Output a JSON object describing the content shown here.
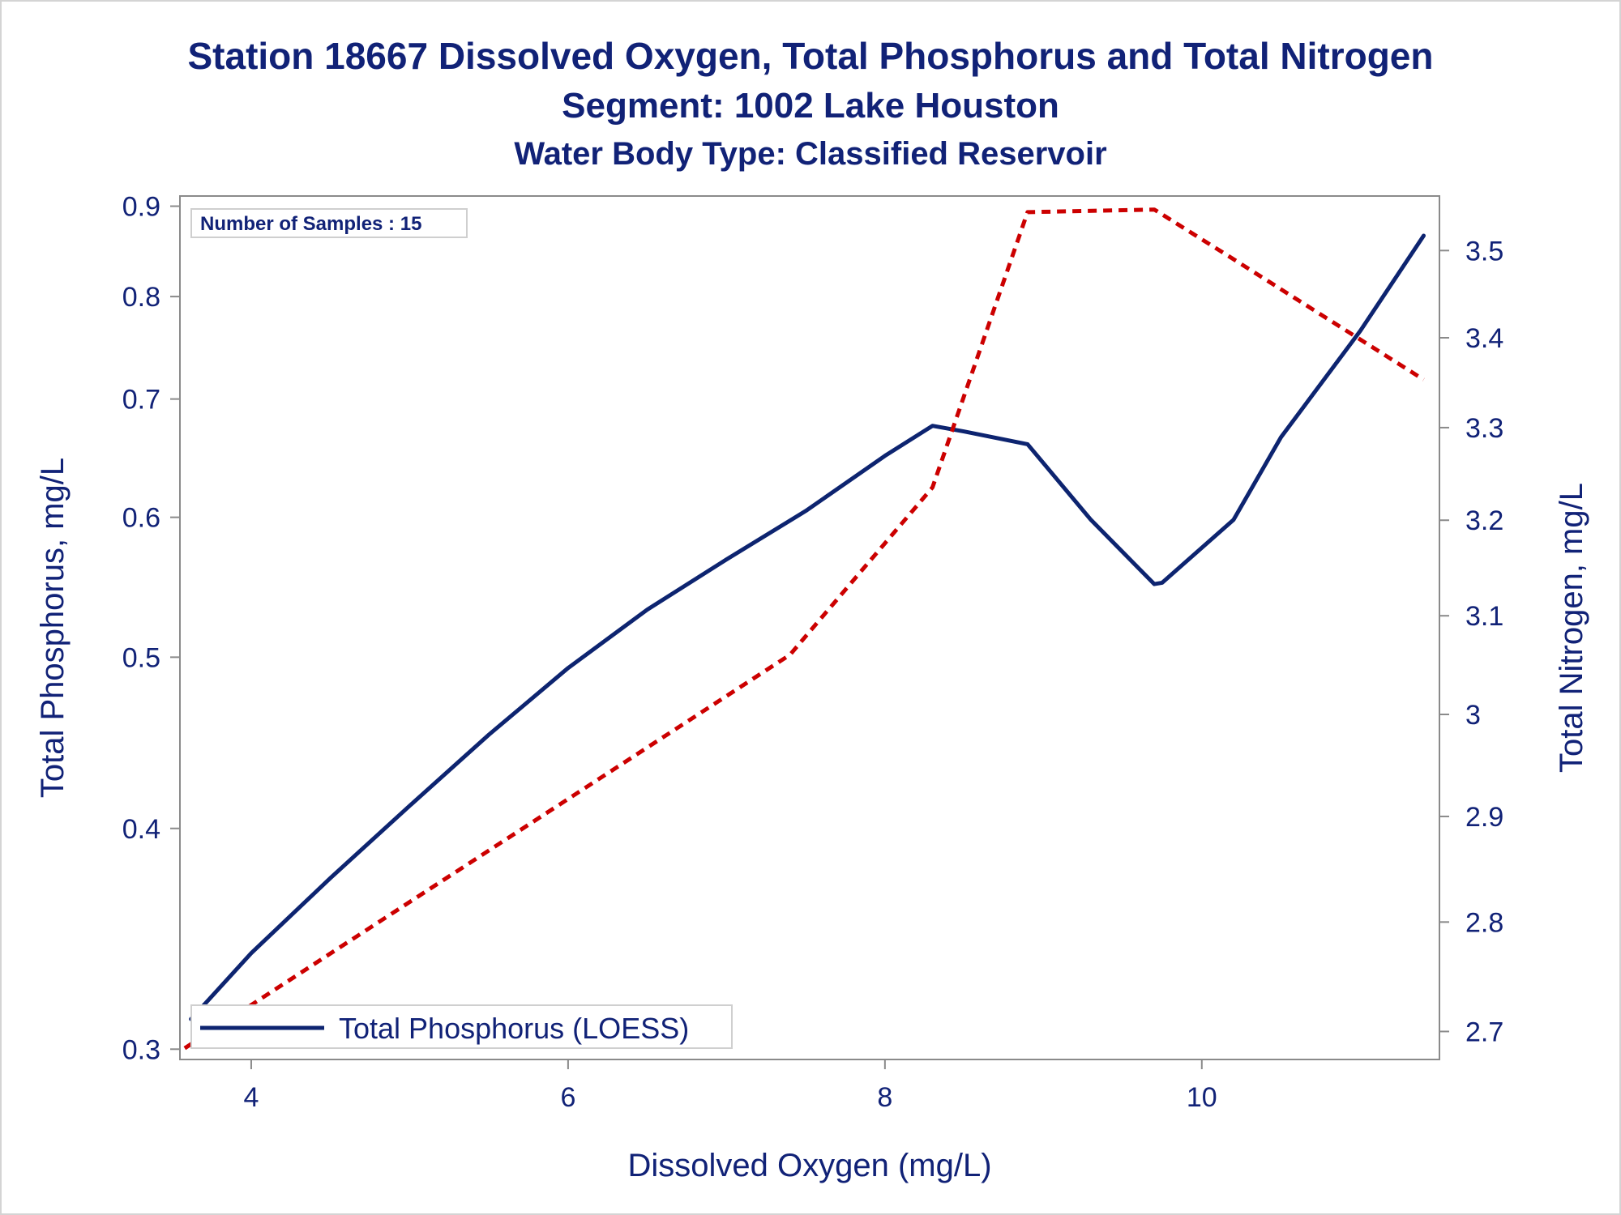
{
  "titles": {
    "line1": "Station 18667  Dissolved Oxygen, Total Phosphorus and Total Nitrogen",
    "line2": "Segment: 1002  Lake Houston",
    "line3": "Water Body Type: Classified Reservoir"
  },
  "chart_data": {
    "type": "line",
    "xlabel": "Dissolved Oxygen (mg/L)",
    "ylabel_left": "Total Phosphorus, mg/L",
    "ylabel_right": "Total Nitrogen, mg/L",
    "x_ticks": [
      "4",
      "6",
      "8",
      "10"
    ],
    "y_left_ticks": [
      "0.3",
      "0.4",
      "0.5",
      "0.6",
      "0.7",
      "0.8",
      "0.9"
    ],
    "y_right_ticks": [
      "2.7",
      "2.8",
      "2.9",
      "3",
      "3.1",
      "3.2",
      "3.3",
      "3.4",
      "3.5"
    ],
    "xlim": [
      3.55,
      11.5
    ],
    "ylim_left": [
      0.296,
      0.912
    ],
    "ylim_right": [
      2.675,
      3.564
    ],
    "y_left_scale": "log",
    "y_right_scale": "log",
    "annotation": "Number of Samples : 15",
    "legend": {
      "placement": "bottom-left",
      "entries": [
        "Total Phosphorus (LOESS)"
      ]
    },
    "series": [
      {
        "name": "Total Phosphorus (LOESS)",
        "axis": "left",
        "style": "solid",
        "color": "#0d2470",
        "x": [
          3.62,
          4.0,
          4.5,
          5.0,
          5.5,
          6.0,
          6.5,
          7.0,
          7.5,
          8.0,
          8.3,
          8.5,
          8.9,
          9.3,
          9.7,
          9.75,
          10.2,
          10.5,
          11.0,
          11.4
        ],
        "y": [
          0.312,
          0.34,
          0.375,
          0.412,
          0.452,
          0.493,
          0.532,
          0.568,
          0.605,
          0.65,
          0.676,
          0.671,
          0.66,
          0.598,
          0.55,
          0.551,
          0.598,
          0.666,
          0.765,
          0.866
        ]
      },
      {
        "name": "",
        "axis": "right",
        "style": "dashed",
        "color": "#cc0000",
        "x": [
          3.58,
          7.4,
          8.3,
          8.9,
          9.7,
          10.2,
          11.4
        ],
        "y": [
          2.685,
          3.06,
          3.235,
          3.545,
          3.548,
          3.49,
          3.353
        ]
      }
    ]
  }
}
